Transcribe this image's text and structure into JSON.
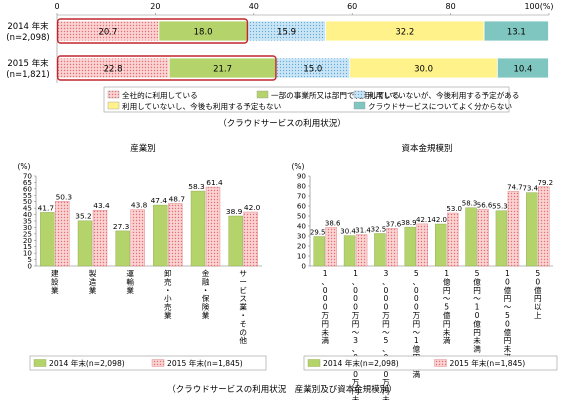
{
  "colors": {
    "c1": "#f6a5a5",
    "c2": "#b5d36b",
    "c3": "#a9d4ee",
    "c4": "#fff28a",
    "c5": "#7fc6c0",
    "red_outline": "#c1272d",
    "y2014": "#b5d36b",
    "y2015": "#f6a5a5"
  },
  "chart_data": [
    {
      "type": "bar",
      "orientation": "horizontal-stacked",
      "caption": "（クラウドサービスの利用状況）",
      "xlim": [
        0,
        100
      ],
      "x_ticks": [
        "0",
        "20",
        "40",
        "60",
        "80",
        "100(%)"
      ],
      "categories": [
        {
          "line1": "2014 年末",
          "line2": "(n=2,098)"
        },
        {
          "line1": "2015 年末",
          "line2": "(n=1,821)"
        }
      ],
      "series": [
        {
          "name": "全社的に利用している",
          "values": [
            20.7,
            22.8
          ]
        },
        {
          "name": "一部の事業所又は部門で利用している",
          "values": [
            18.0,
            21.7
          ]
        },
        {
          "name": "利用していないが、今後利用する予定がある",
          "values": [
            15.9,
            15.0
          ]
        },
        {
          "name": "利用していないし、今後も利用する予定もない",
          "values": [
            32.2,
            30.0
          ]
        },
        {
          "name": "クラウドサービスについてよく分からない",
          "values": [
            13.1,
            10.4
          ]
        }
      ],
      "value_labels": [
        [
          "20.7",
          "18.0",
          "15.9",
          "32.2",
          "13.1"
        ],
        [
          "22.8",
          "21.7",
          "15.0",
          "30.0",
          "10.4"
        ]
      ]
    },
    {
      "type": "bar",
      "title": "産業別",
      "y_unit": "(%)",
      "ylim": [
        0,
        70
      ],
      "y_ticks": [
        "0",
        "5",
        "10",
        "15",
        "20",
        "25",
        "30",
        "35",
        "40",
        "45",
        "50",
        "55",
        "60",
        "65",
        "70"
      ],
      "categories": [
        "建設業",
        "製造業",
        "運輸業",
        "卸売・小売業",
        "金融・保険業",
        "サービス業・その他"
      ],
      "series": [
        {
          "name": "2014 年末(n=2,098)",
          "values": [
            41.7,
            35.2,
            27.3,
            47.4,
            58.3,
            38.9
          ],
          "labels": [
            "41.7",
            "35.2",
            "27.3",
            "47.4",
            "58.3",
            "38.9"
          ]
        },
        {
          "name": "2015 年末(n=1,845)",
          "values": [
            50.3,
            43.4,
            43.8,
            48.7,
            61.4,
            42.0
          ],
          "labels": [
            "50.3",
            "43.4",
            "43.8",
            "48.7",
            "61.4",
            "42.0"
          ]
        }
      ]
    },
    {
      "type": "bar",
      "title": "資本金規模別",
      "y_unit": "(%)",
      "ylim": [
        0,
        90
      ],
      "y_ticks": [
        "0",
        "10",
        "20",
        "30",
        "40",
        "50",
        "60",
        "70",
        "80",
        "90"
      ],
      "categories": [
        "1、000万円未満",
        "1、000万円～3、000万円未満",
        "3、000万円～5、000万円未満",
        "5、000万円～1億円未満",
        "1億円～5億円未満",
        "5億円～10億円未満",
        "10億円～50億円未満",
        "50億円以上"
      ],
      "series": [
        {
          "name": "2014 年末(n=2,098)",
          "values": [
            29.5,
            30.4,
            32.5,
            38.9,
            42.0,
            58.3,
            55.3,
            73.4
          ],
          "labels": [
            "29.5",
            "30.4",
            "32.5",
            "38.9",
            "42.0",
            "58.3",
            "55.3",
            "73.4"
          ]
        },
        {
          "name": "2015 年末(n=1,845)",
          "values": [
            38.6,
            31.4,
            37.6,
            42.1,
            53.0,
            56.6,
            74.7,
            79.2
          ],
          "labels": [
            "38.6",
            "31.4",
            "37.6",
            "42.1",
            "53.0",
            "56.6",
            "74.7",
            "79.2"
          ]
        }
      ]
    }
  ],
  "bottom_caption": "（クラウドサービスの利用状況　産業別及び資本金規模別）"
}
